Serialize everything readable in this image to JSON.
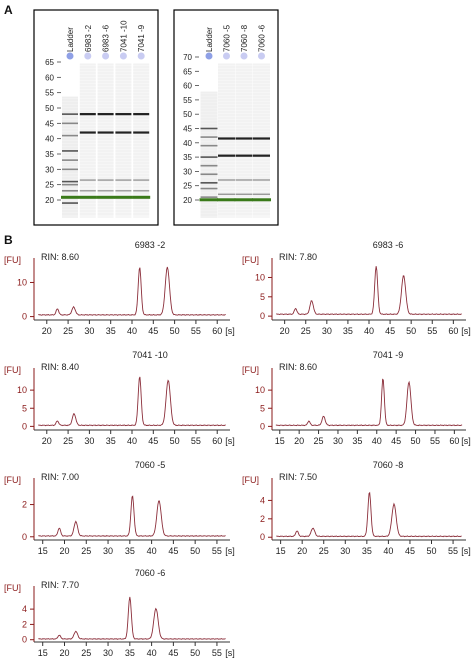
{
  "panel_labels": {
    "a": "A",
    "b": "B"
  },
  "chart_data": [
    {
      "type": "table",
      "kind": "gel",
      "lanes": [
        "Ladder",
        "6983 -2",
        "6983 -6",
        "7041 -10",
        "7041 -9"
      ],
      "ladder_ticks": [
        "65",
        "60",
        "55",
        "50",
        "45",
        "40",
        "35",
        "30",
        "25",
        "20"
      ],
      "tick_values": [
        65,
        60,
        55,
        50,
        45,
        40,
        35,
        30,
        25,
        20
      ],
      "ladder_band_values": [
        48,
        45,
        41,
        36,
        33,
        30,
        26,
        25,
        23,
        19
      ],
      "sample_band_values": [
        48,
        42,
        26.5,
        23
      ],
      "marker_value": 23
    },
    {
      "type": "table",
      "kind": "gel",
      "lanes": [
        "Ladder",
        "7060 -5",
        "7060 -8",
        "7060 -6"
      ],
      "ladder_ticks": [
        "70",
        "65",
        "60",
        "55",
        "50",
        "45",
        "40",
        "35",
        "30",
        "25",
        "20"
      ],
      "tick_values": [
        70,
        65,
        60,
        55,
        50,
        45,
        40,
        35,
        30,
        25,
        20
      ],
      "ladder_band_values": [
        45,
        42,
        39,
        35,
        32,
        29,
        26,
        24,
        21
      ],
      "sample_band_values": [
        41.5,
        35.5,
        27,
        22
      ],
      "marker_value": 22
    },
    {
      "type": "line",
      "title": "6983 -2",
      "rin": "RIN: 8.60",
      "ylabel": "[FU]",
      "xunit": "[s]",
      "yticks": [
        0,
        10
      ],
      "xticks": [
        20,
        25,
        30,
        35,
        40,
        45,
        50,
        55,
        60
      ],
      "xlim": [
        17,
        63
      ],
      "ylim": [
        -1,
        16
      ],
      "baseline": 0.5,
      "peaks": [
        [
          22.5,
          1.8,
          0.3
        ],
        [
          26.3,
          2.3,
          0.4
        ],
        [
          41.8,
          14,
          0.35
        ],
        [
          48.3,
          14,
          0.5
        ]
      ]
    },
    {
      "type": "line",
      "title": "6983 -6",
      "rin": "RIN: 7.80",
      "ylabel": "[FU]",
      "xunit": "[s]",
      "yticks": [
        0,
        5,
        10
      ],
      "xticks": [
        20,
        25,
        30,
        35,
        40,
        45,
        50,
        55,
        60
      ],
      "xlim": [
        17,
        63
      ],
      "ylim": [
        -1,
        14
      ],
      "baseline": 0.5,
      "peaks": [
        [
          22.6,
          1.5,
          0.3
        ],
        [
          26.4,
          3.5,
          0.4
        ],
        [
          41.7,
          12.5,
          0.35
        ],
        [
          48.2,
          10,
          0.5
        ]
      ]
    },
    {
      "type": "line",
      "title": "7041 -10",
      "rin": "RIN: 8.40",
      "ylabel": "[FU]",
      "xunit": "[s]",
      "yticks": [
        0,
        5,
        10
      ],
      "xticks": [
        20,
        25,
        30,
        35,
        40,
        45,
        50,
        55,
        60
      ],
      "xlim": [
        17,
        63
      ],
      "ylim": [
        -1,
        15
      ],
      "baseline": 0.3,
      "peaks": [
        [
          22.5,
          1.2,
          0.3
        ],
        [
          26.4,
          3.2,
          0.4
        ],
        [
          41.8,
          13.5,
          0.35
        ],
        [
          48.5,
          12.5,
          0.5
        ]
      ]
    },
    {
      "type": "line",
      "title": "7041 -9",
      "rin": "RIN: 8.60",
      "ylabel": "[FU]",
      "xunit": "[s]",
      "yticks": [
        0,
        5,
        10
      ],
      "xticks": [
        15,
        20,
        25,
        30,
        35,
        40,
        45,
        50,
        55,
        60
      ],
      "xlim": [
        13,
        63
      ],
      "ylim": [
        -1,
        15
      ],
      "baseline": 0.3,
      "peaks": [
        [
          22.5,
          1.2,
          0.3
        ],
        [
          26.3,
          2.5,
          0.4
        ],
        [
          41.6,
          13,
          0.35
        ],
        [
          48.3,
          12,
          0.5
        ]
      ]
    },
    {
      "type": "line",
      "title": "7060 -5",
      "rin": "RIN: 7.00",
      "ylabel": "[FU]",
      "xunit": "[s]",
      "yticks": [
        0,
        2
      ],
      "xticks": [
        15,
        20,
        25,
        30,
        35,
        40,
        45,
        50,
        55
      ],
      "xlim": [
        13,
        58
      ],
      "ylim": [
        -0.2,
        3.4
      ],
      "baseline": 0.05,
      "peaks": [
        [
          18.8,
          0.5,
          0.3
        ],
        [
          22.6,
          0.9,
          0.4
        ],
        [
          35.6,
          2.5,
          0.35
        ],
        [
          41.7,
          2.2,
          0.5
        ]
      ]
    },
    {
      "type": "line",
      "title": "7060 -8",
      "rin": "RIN: 7.50",
      "ylabel": "[FU]",
      "xunit": "[s]",
      "yticks": [
        0,
        2,
        4
      ],
      "xticks": [
        15,
        20,
        25,
        30,
        35,
        40,
        45,
        50,
        55
      ],
      "xlim": [
        13,
        58
      ],
      "ylim": [
        -0.3,
        6
      ],
      "baseline": 0.1,
      "peaks": [
        [
          18.8,
          0.6,
          0.3
        ],
        [
          22.5,
          0.9,
          0.4
        ],
        [
          35.6,
          4.8,
          0.35
        ],
        [
          41.3,
          3.5,
          0.5
        ]
      ]
    },
    {
      "type": "line",
      "title": "7060 -6",
      "rin": "RIN: 7.70",
      "ylabel": "[FU]",
      "xunit": "[s]",
      "yticks": [
        0,
        2,
        4
      ],
      "xticks": [
        15,
        20,
        25,
        30,
        35,
        40,
        45,
        50,
        55
      ],
      "xlim": [
        13,
        58
      ],
      "ylim": [
        -0.3,
        6.5
      ],
      "baseline": 0.1,
      "peaks": [
        [
          18.8,
          0.5,
          0.3
        ],
        [
          22.6,
          1.0,
          0.4
        ],
        [
          35.0,
          5.5,
          0.35
        ],
        [
          41.0,
          4.0,
          0.5
        ]
      ]
    }
  ],
  "colors": {
    "trace": "#8b2e3a",
    "axis_fu": "#8a1a1a",
    "ladder_dot": "#8fa0e6",
    "sample_dot": "#c9ccf2",
    "marker_band": "#3a7a1a",
    "gel_frame": "#000000"
  }
}
